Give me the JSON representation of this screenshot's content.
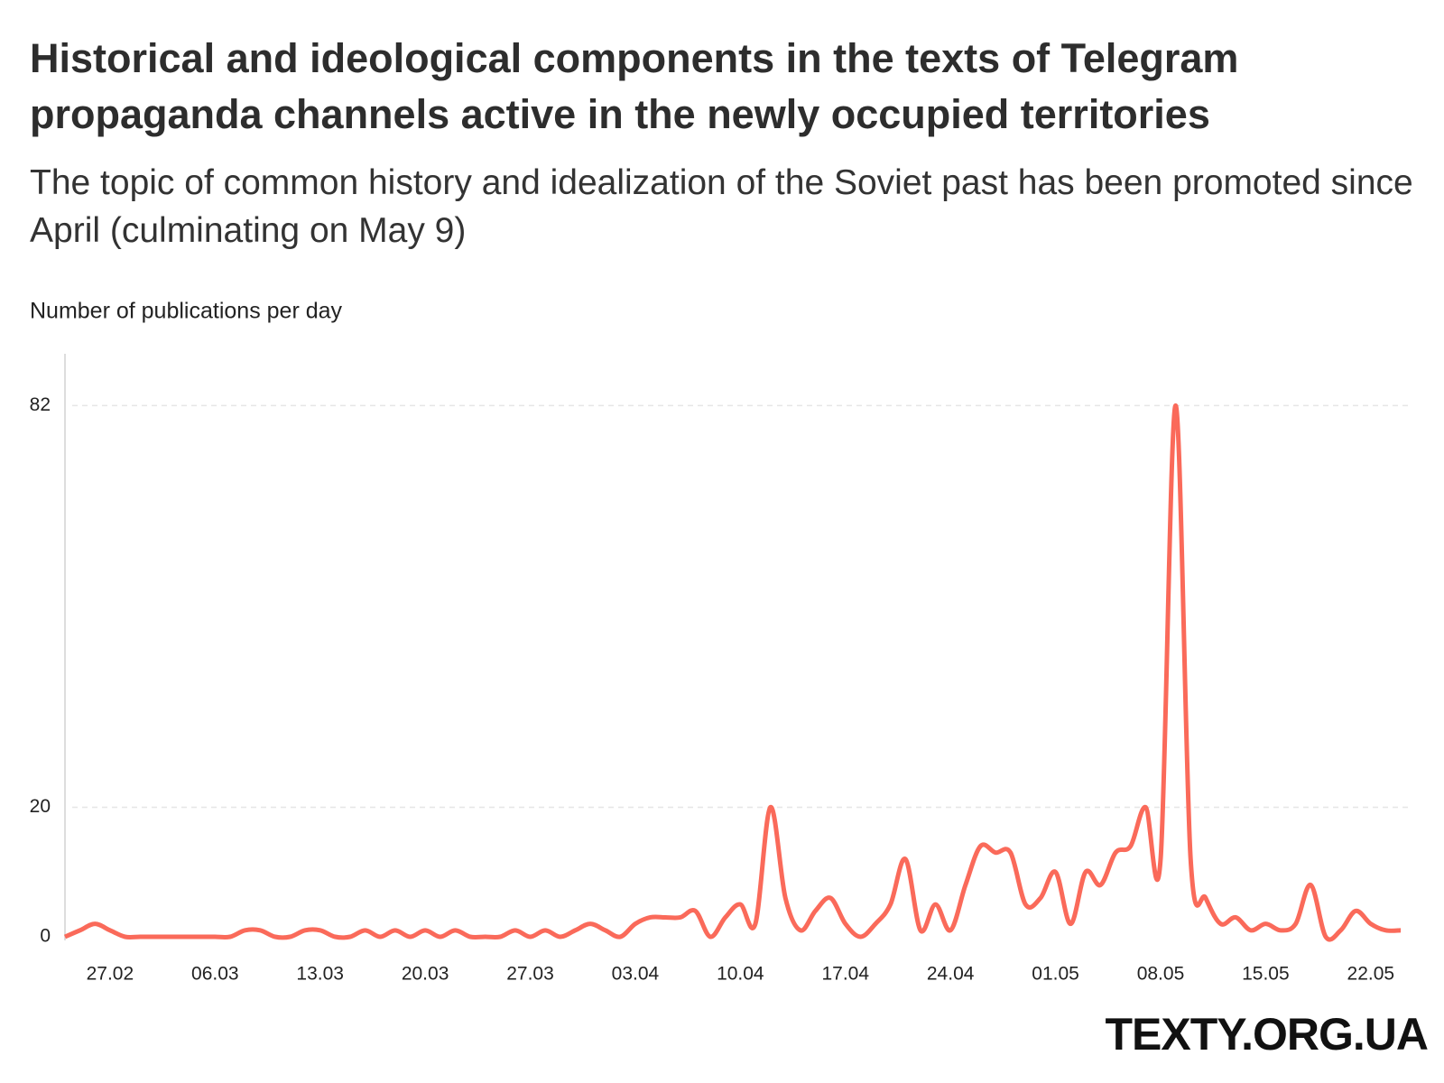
{
  "chart_data": {
    "type": "line",
    "title": "Historical and ideological components in the texts of Telegram propaganda channels active in the newly occupied territories",
    "subtitle": "The topic of common history and idealization of the Soviet past has been promoted since April (culminating on May 9)",
    "y_label": "Number of publications per day",
    "source": "TEXTY.ORG.UA",
    "categories": [
      null,
      null,
      null,
      "27.02",
      null,
      null,
      null,
      null,
      null,
      null,
      "06.03",
      null,
      null,
      null,
      null,
      null,
      null,
      "13.03",
      null,
      null,
      null,
      null,
      null,
      null,
      "20.03",
      null,
      null,
      null,
      null,
      null,
      null,
      "27.03",
      null,
      null,
      null,
      null,
      null,
      null,
      "03.04",
      null,
      null,
      null,
      null,
      null,
      null,
      "10.04",
      null,
      null,
      null,
      null,
      null,
      null,
      "17.04",
      null,
      null,
      null,
      null,
      null,
      null,
      "24.04",
      null,
      null,
      null,
      null,
      null,
      null,
      "01.05",
      null,
      null,
      null,
      null,
      null,
      null,
      "08.05",
      null,
      null,
      null,
      null,
      null,
      null,
      "15.05",
      null,
      null,
      null,
      null,
      null,
      null,
      "22.05",
      null,
      null
    ],
    "values": [
      0,
      1,
      2,
      1,
      0,
      0,
      0,
      0,
      0,
      0,
      0,
      0,
      1,
      1,
      0,
      0,
      1,
      1,
      0,
      0,
      1,
      0,
      1,
      0,
      1,
      0,
      1,
      0,
      0,
      0,
      1,
      0,
      1,
      0,
      1,
      2,
      1,
      0,
      2,
      3,
      3,
      3,
      4,
      0,
      3,
      5,
      2,
      20,
      6,
      1,
      4,
      6,
      2,
      0,
      2,
      5,
      12,
      1,
      5,
      1,
      8,
      14,
      13,
      13,
      5,
      6,
      10,
      2,
      10,
      8,
      13,
      14,
      20,
      12,
      82,
      12,
      6,
      2,
      3,
      1,
      2,
      1,
      2,
      8,
      0,
      1,
      4,
      2,
      1,
      1
    ],
    "color": "#fa6a5a",
    "ylim": [
      0,
      90
    ],
    "yticks": [
      0,
      20,
      82
    ],
    "grid": true
  }
}
